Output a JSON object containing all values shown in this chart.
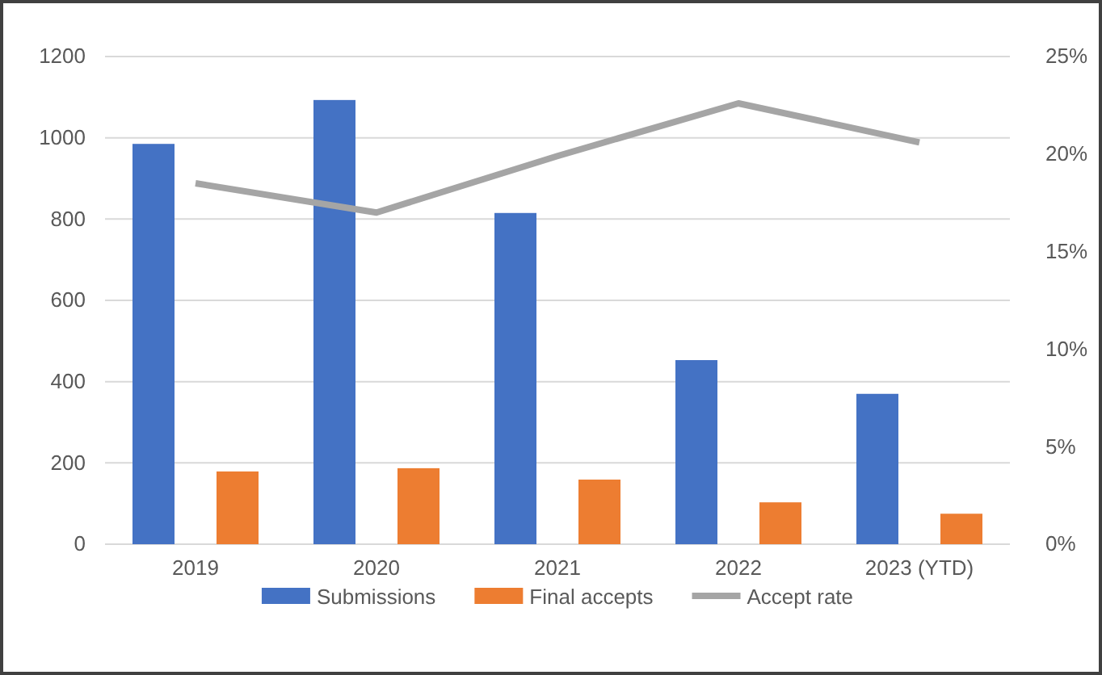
{
  "chart_data": {
    "type": "bar",
    "categories": [
      "2019",
      "2020",
      "2021",
      "2022",
      "2023 (YTD)"
    ],
    "series": [
      {
        "name": "Submissions",
        "color": "#4472c4",
        "values": [
          985,
          1093,
          815,
          453,
          370
        ]
      },
      {
        "name": "Final accepts",
        "color": "#ed7d31",
        "values": [
          179,
          187,
          159,
          103,
          75
        ]
      },
      {
        "name": "Accept rate",
        "color": "#a5a5a5",
        "type": "line",
        "axis": "y2",
        "values": [
          18.5,
          17.0,
          19.9,
          22.6,
          20.6
        ]
      }
    ],
    "ylim": [
      0,
      1200
    ],
    "yticks": [
      0,
      200,
      400,
      600,
      800,
      1000,
      1200
    ],
    "y2lim": [
      0,
      25
    ],
    "y2ticks": [
      {
        "value": 0,
        "label": "0%"
      },
      {
        "value": 5,
        "label": "5%"
      },
      {
        "value": 10,
        "label": "10%"
      },
      {
        "value": 15,
        "label": "15%"
      },
      {
        "value": 20,
        "label": "20%"
      },
      {
        "value": 25,
        "label": "25%"
      }
    ],
    "grid": "y",
    "legend": "bottom",
    "marker": "none"
  }
}
